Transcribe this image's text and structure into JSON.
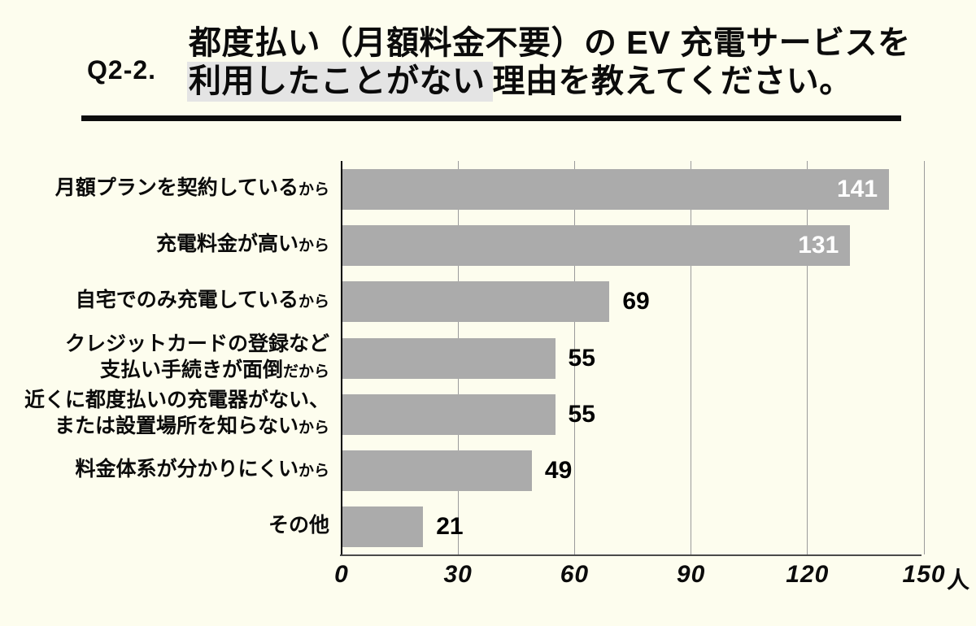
{
  "header": {
    "question_no": "Q2-2.",
    "title_line1": "都度払い（月額料金不要）の EV 充電サービスを",
    "title_line2": {
      "highlight": "利用したことがない",
      "rest": "理由を教えてください。"
    }
  },
  "colors": {
    "background": "#FDFDEE",
    "bar": "#ABABAB",
    "title_highlight": "#E4E4E4",
    "gridline": "#9b9b9b",
    "axis": "#4a4a4a",
    "value_inside_text": "#FFFFFF",
    "value_outside_text": "#000000",
    "text": "#0b0b0b"
  },
  "chart_data": {
    "type": "bar",
    "orientation": "horizontal",
    "unit": "人",
    "xlim": [
      0,
      150
    ],
    "xticks": [
      0,
      30,
      60,
      90,
      120,
      150
    ],
    "xtick_unit_suffix": "人",
    "grid": true,
    "categories": [
      "月額プランを契約しているから",
      "充電料金が高いから",
      "自宅でのみ充電しているから",
      "クレジットカードの登録など支払い手続きが面倒だから",
      "近くに都度払いの充電器がない、または設置場所を知らないから",
      "料金体系が分かりにくいから",
      "その他"
    ],
    "values": [
      141,
      131,
      69,
      55,
      55,
      49,
      21
    ],
    "items": [
      {
        "label_lines": [
          {
            "main": "月額プランを契約している",
            "small": "から"
          }
        ],
        "value": 141,
        "value_label_position": "inside"
      },
      {
        "label_lines": [
          {
            "main": "充電料金が高い",
            "small": "から"
          }
        ],
        "value": 131,
        "value_label_position": "inside"
      },
      {
        "label_lines": [
          {
            "main": "自宅でのみ充電している",
            "small": "から"
          }
        ],
        "value": 69,
        "value_label_position": "outside"
      },
      {
        "label_lines": [
          {
            "main": "クレジットカードの登録など",
            "small": ""
          },
          {
            "main": "支払い手続きが面倒",
            "small": "だから"
          }
        ],
        "value": 55,
        "value_label_position": "outside"
      },
      {
        "label_lines": [
          {
            "main": "近くに都度払いの充電器がない、",
            "small": ""
          },
          {
            "main": "または設置場所を知らない",
            "small": "から"
          }
        ],
        "value": 55,
        "value_label_position": "outside"
      },
      {
        "label_lines": [
          {
            "main": "料金体系が分かりにくい",
            "small": "から"
          }
        ],
        "value": 49,
        "value_label_position": "outside"
      },
      {
        "label_lines": [
          {
            "main": "その他",
            "small": ""
          }
        ],
        "value": 21,
        "value_label_position": "outside"
      }
    ]
  }
}
